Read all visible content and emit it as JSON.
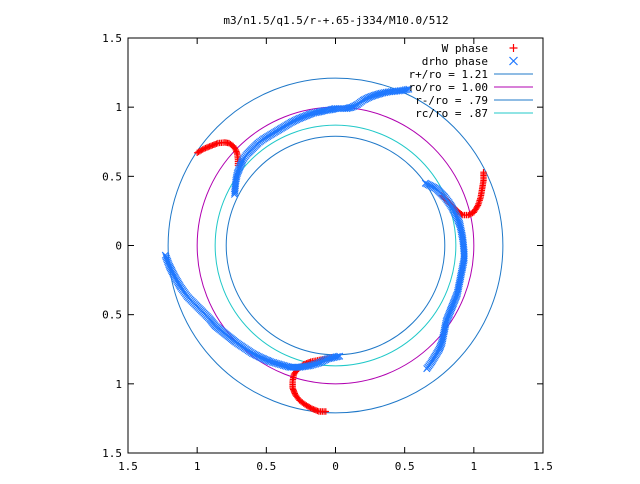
{
  "chart_data": {
    "type": "scatter",
    "title": "m3/n1.5/q1.5/r-+.65-j334/M10.0/512",
    "xlim": [
      -1.5,
      1.5
    ],
    "ylim": [
      -1.5,
      1.5
    ],
    "x_ticks": [
      -1.5,
      -1,
      -0.5,
      0,
      0.5,
      1,
      1.5
    ],
    "x_tick_labels": [
      "1.5",
      "1",
      "0.5",
      "0",
      "0.5",
      "1",
      "1.5"
    ],
    "y_ticks": [
      -1.5,
      -1,
      -0.5,
      0,
      0.5,
      1,
      1.5
    ],
    "y_tick_labels": [
      "1.5",
      "1",
      "0.5",
      "0",
      "0.5",
      "1",
      "1.5"
    ],
    "grid": false,
    "legend_position": "top-right",
    "circles": [
      {
        "name": "r+/ro = 1.21",
        "radius": 1.21,
        "color": "#1f78c8"
      },
      {
        "name": "ro/ro = 1.00",
        "radius": 1.0,
        "color": "#b000b0"
      },
      {
        "name": "r-/ro = .79",
        "radius": 0.79,
        "color": "#1f78c8"
      },
      {
        "name": "rc/ro = .87",
        "radius": 0.87,
        "color": "#20c8c8"
      }
    ],
    "series": [
      {
        "name": "W phase",
        "marker": "plus",
        "color": "#ff0000",
        "segments": [
          [
            [
              -1.0,
              0.67
            ],
            [
              -0.95,
              0.7
            ],
            [
              -0.9,
              0.72
            ],
            [
              -0.85,
              0.74
            ],
            [
              -0.8,
              0.745
            ],
            [
              -0.77,
              0.74
            ],
            [
              -0.74,
              0.72
            ],
            [
              -0.72,
              0.69
            ],
            [
              -0.71,
              0.66
            ],
            [
              -0.705,
              0.62
            ],
            [
              -0.705,
              0.58
            ]
          ],
          [
            [
              1.07,
              0.53
            ],
            [
              1.07,
              0.47
            ],
            [
              1.06,
              0.41
            ],
            [
              1.05,
              0.35
            ],
            [
              1.03,
              0.29
            ],
            [
              1.0,
              0.24
            ],
            [
              0.96,
              0.22
            ],
            [
              0.92,
              0.22
            ],
            [
              0.89,
              0.24
            ],
            [
              0.86,
              0.27
            ],
            [
              0.83,
              0.3
            ],
            [
              0.8,
              0.33
            ],
            [
              0.77,
              0.36
            ]
          ],
          [
            [
              -0.07,
              -1.2
            ],
            [
              -0.12,
              -1.2
            ],
            [
              -0.17,
              -1.18
            ],
            [
              -0.22,
              -1.15
            ],
            [
              -0.26,
              -1.12
            ],
            [
              -0.29,
              -1.08
            ],
            [
              -0.31,
              -1.03
            ],
            [
              -0.31,
              -0.98
            ],
            [
              -0.3,
              -0.93
            ],
            [
              -0.27,
              -0.89
            ],
            [
              -0.23,
              -0.86
            ],
            [
              -0.18,
              -0.84
            ],
            [
              -0.13,
              -0.83
            ],
            [
              -0.08,
              -0.82
            ],
            [
              -0.03,
              -0.81
            ]
          ]
        ]
      },
      {
        "name": "drho phase",
        "marker": "cross",
        "color": "#1f78ff",
        "segments": [
          [
            [
              0.53,
              1.13
            ],
            [
              0.48,
              1.12
            ],
            [
              0.43,
              1.115
            ],
            [
              0.38,
              1.11
            ],
            [
              0.33,
              1.1
            ],
            [
              0.28,
              1.085
            ],
            [
              0.24,
              1.07
            ],
            [
              0.2,
              1.05
            ],
            [
              0.16,
              1.02
            ],
            [
              0.12,
              1.0
            ],
            [
              0.08,
              0.99
            ],
            [
              0.04,
              0.99
            ],
            [
              0.0,
              0.99
            ],
            [
              -0.04,
              0.98
            ],
            [
              -0.08,
              0.975
            ],
            [
              -0.12,
              0.965
            ],
            [
              -0.17,
              0.955
            ],
            [
              -0.22,
              0.935
            ],
            [
              -0.27,
              0.915
            ],
            [
              -0.32,
              0.89
            ],
            [
              -0.37,
              0.86
            ],
            [
              -0.42,
              0.83
            ],
            [
              -0.47,
              0.8
            ],
            [
              -0.52,
              0.77
            ],
            [
              -0.56,
              0.74
            ],
            [
              -0.6,
              0.7
            ],
            [
              -0.64,
              0.66
            ],
            [
              -0.67,
              0.62
            ],
            [
              -0.69,
              0.57
            ],
            [
              -0.71,
              0.52
            ],
            [
              -0.72,
              0.47
            ],
            [
              -0.725,
              0.42
            ],
            [
              -0.73,
              0.37
            ]
          ],
          [
            [
              0.65,
              0.45
            ],
            [
              0.69,
              0.43
            ],
            [
              0.73,
              0.41
            ],
            [
              0.76,
              0.38
            ],
            [
              0.79,
              0.35
            ],
            [
              0.82,
              0.31
            ],
            [
              0.84,
              0.28
            ],
            [
              0.86,
              0.24
            ],
            [
              0.88,
              0.2
            ],
            [
              0.9,
              0.15
            ],
            [
              0.91,
              0.1
            ],
            [
              0.92,
              0.05
            ],
            [
              0.925,
              0.0
            ],
            [
              0.93,
              -0.05
            ],
            [
              0.93,
              -0.1
            ],
            [
              0.92,
              -0.15
            ],
            [
              0.91,
              -0.2
            ],
            [
              0.9,
              -0.25
            ],
            [
              0.89,
              -0.3
            ],
            [
              0.88,
              -0.35
            ],
            [
              0.86,
              -0.4
            ],
            [
              0.84,
              -0.45
            ],
            [
              0.82,
              -0.5
            ],
            [
              0.8,
              -0.55
            ],
            [
              0.79,
              -0.6
            ],
            [
              0.78,
              -0.65
            ],
            [
              0.77,
              -0.7
            ],
            [
              0.75,
              -0.75
            ],
            [
              0.72,
              -0.8
            ],
            [
              0.69,
              -0.85
            ],
            [
              0.66,
              -0.89
            ]
          ],
          [
            [
              -1.23,
              -0.07
            ],
            [
              -1.2,
              -0.15
            ],
            [
              -1.16,
              -0.23
            ],
            [
              -1.12,
              -0.3
            ],
            [
              -1.07,
              -0.37
            ],
            [
              -1.01,
              -0.43
            ],
            [
              -0.96,
              -0.48
            ],
            [
              -0.91,
              -0.53
            ],
            [
              -0.87,
              -0.58
            ],
            [
              -0.82,
              -0.62
            ],
            [
              -0.77,
              -0.66
            ],
            [
              -0.72,
              -0.7
            ],
            [
              -0.66,
              -0.74
            ],
            [
              -0.6,
              -0.78
            ],
            [
              -0.54,
              -0.81
            ],
            [
              -0.47,
              -0.84
            ],
            [
              -0.4,
              -0.86
            ],
            [
              -0.33,
              -0.88
            ],
            [
              -0.26,
              -0.88
            ],
            [
              -0.19,
              -0.87
            ],
            [
              -0.12,
              -0.85
            ],
            [
              -0.06,
              -0.82
            ],
            [
              0.03,
              -0.8
            ]
          ]
        ]
      }
    ]
  }
}
